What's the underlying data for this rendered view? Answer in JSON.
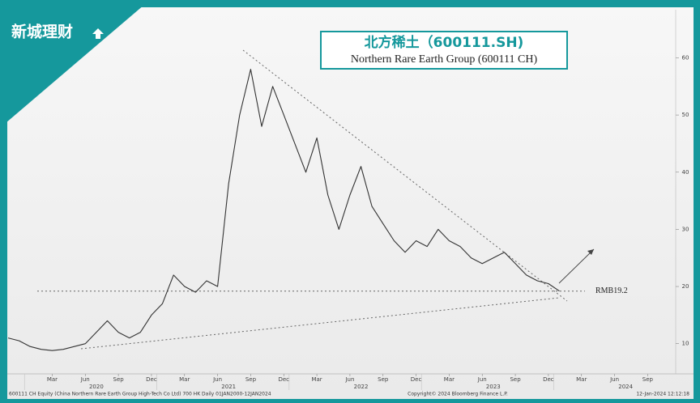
{
  "logo": "新城理财",
  "chart_data": {
    "type": "line",
    "title": "北方稀土（600111.SH)",
    "subtitle": "Northern Rare Earth Group (600111 CH)",
    "x": [
      "2019-11",
      "2019-12",
      "2020-01",
      "2020-02",
      "2020-03",
      "2020-04",
      "2020-05",
      "2020-06",
      "2020-07",
      "2020-08",
      "2020-09",
      "2020-10",
      "2020-11",
      "2020-12",
      "2021-01",
      "2021-02",
      "2021-03",
      "2021-04",
      "2021-05",
      "2021-06",
      "2021-07",
      "2021-08",
      "2021-09",
      "2021-10",
      "2021-11",
      "2021-12",
      "2022-01",
      "2022-02",
      "2022-03",
      "2022-04",
      "2022-05",
      "2022-06",
      "2022-07",
      "2022-08",
      "2022-09",
      "2022-10",
      "2022-11",
      "2022-12",
      "2023-01",
      "2023-02",
      "2023-03",
      "2023-04",
      "2023-05",
      "2023-06",
      "2023-07",
      "2023-08",
      "2023-09",
      "2023-10",
      "2023-11",
      "2023-12",
      "2024-01"
    ],
    "values": [
      11,
      10.5,
      9.5,
      9,
      8.8,
      9,
      9.5,
      10,
      12,
      14,
      12,
      11,
      12,
      15,
      17,
      22,
      20,
      19,
      21,
      20,
      38,
      50,
      58,
      48,
      55,
      50,
      45,
      40,
      46,
      36,
      30,
      36,
      41,
      34,
      31,
      28,
      26,
      28,
      27,
      30,
      28,
      27,
      25,
      24,
      25,
      26,
      24,
      22,
      21,
      20.5,
      19.2
    ],
    "color": "#333333",
    "xlim": [
      "2019-11",
      "2024-10"
    ],
    "ylim": [
      5,
      67.5
    ],
    "yticks": [
      10,
      20,
      30,
      40,
      50,
      60
    ],
    "xticks": [
      {
        "value": "2020-03",
        "label": "Mar"
      },
      {
        "value": "2020-06",
        "label": "Jun"
      },
      {
        "value": "2020-09",
        "label": "Sep"
      },
      {
        "value": "2020-12",
        "label": "Dec"
      },
      {
        "value": "2021-03",
        "label": "Mar"
      },
      {
        "value": "2021-06",
        "label": "Jun"
      },
      {
        "value": "2021-09",
        "label": "Sep"
      },
      {
        "value": "2021-12",
        "label": "Dec"
      },
      {
        "value": "2022-03",
        "label": "Mar"
      },
      {
        "value": "2022-06",
        "label": "Jun"
      },
      {
        "value": "2022-09",
        "label": "Sep"
      },
      {
        "value": "2022-12",
        "label": "Dec"
      },
      {
        "value": "2023-03",
        "label": "Mar"
      },
      {
        "value": "2023-06",
        "label": "Jun"
      },
      {
        "value": "2023-09",
        "label": "Sep"
      },
      {
        "value": "2023-12",
        "label": "Dec"
      },
      {
        "value": "2024-03",
        "label": "Mar"
      },
      {
        "value": "2024-06",
        "label": "Jun"
      },
      {
        "value": "2024-09",
        "label": "Sep"
      }
    ],
    "years": [
      "2020",
      "2021",
      "2022",
      "2023",
      "2024"
    ],
    "reference": {
      "value": 19.2,
      "label": "RMB19.2"
    },
    "footer": {
      "left": "600111 CH Equity (China Northern Rare Earth Group High-Tech Co Ltd) 700 HK  Daily 01JAN2000-12JAN2024",
      "center": "Copyright© 2024 Bloomberg Finance L.P.",
      "right": "12-Jan-2024 12:12:18"
    }
  }
}
